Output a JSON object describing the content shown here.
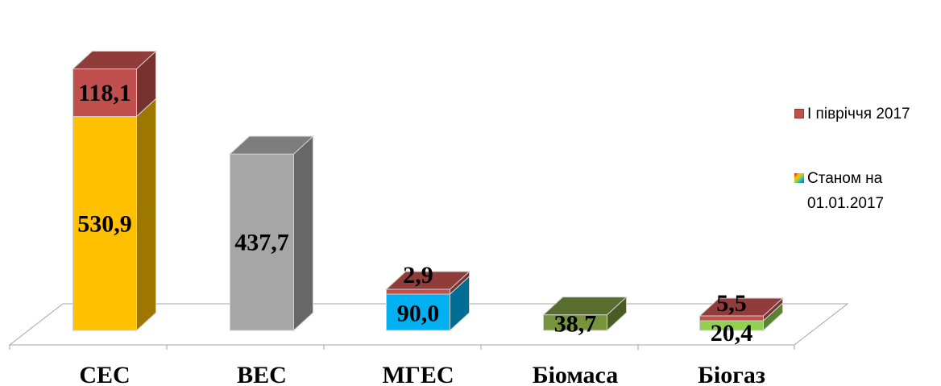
{
  "chart_data": {
    "type": "bar",
    "stacked": true,
    "three_d": true,
    "categories": [
      "СЕС",
      "ВЕС",
      "МГЕС",
      "Біомаса",
      "Біогаз"
    ],
    "series": [
      {
        "name": "Станом на 01.01.2017",
        "values": [
          530.9,
          437.7,
          90.0,
          38.7,
          20.4
        ],
        "labels": [
          "530,9",
          "437,7",
          "90,0",
          "38,7",
          "20,4"
        ]
      },
      {
        "name": "І півріччя 2017",
        "values": [
          118.1,
          0,
          2.9,
          0,
          5.5
        ],
        "labels": [
          "118,1",
          "",
          "2,9",
          "",
          "5,5"
        ]
      }
    ],
    "colors": {
      "base": [
        "#ffc000",
        "#a6a6a6",
        "#00b0f0",
        "#77933c",
        "#92d050"
      ],
      "h1": "#c0504d"
    },
    "legend_position": "right",
    "grid": false
  },
  "legend": {
    "h1_label": "І півріччя 2017",
    "base_label": "Станом на 01.01.2017"
  }
}
